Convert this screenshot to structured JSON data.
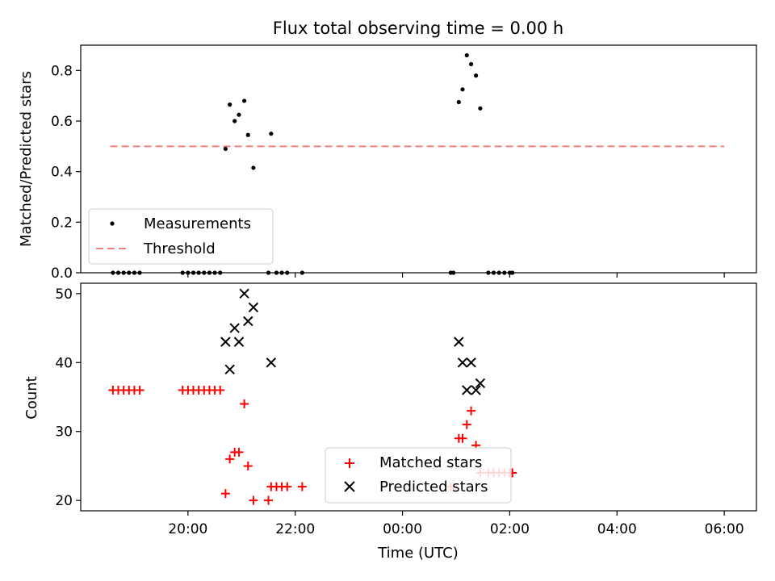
{
  "title": "Flux total observing time = 0.00 h",
  "chart_data": [
    {
      "type": "scatter",
      "panel": "top",
      "ylabel": "Matched/Predicted stars",
      "ylim": [
        0,
        0.9
      ],
      "yticks": [
        "0.0",
        "0.2",
        "0.4",
        "0.6",
        "0.8"
      ],
      "xlim_hours": [
        18.0,
        30.6
      ],
      "threshold": 0.5,
      "threshold_color": "#f08080",
      "series": [
        {
          "name": "Measurements",
          "marker": "dot",
          "color": "#000000",
          "points": [
            [
              18.6,
              0.0
            ],
            [
              18.7,
              0.0
            ],
            [
              18.8,
              0.0
            ],
            [
              18.9,
              0.0
            ],
            [
              19.0,
              0.0
            ],
            [
              19.1,
              0.0
            ],
            [
              19.9,
              0.0
            ],
            [
              20.0,
              0.0
            ],
            [
              20.1,
              0.0
            ],
            [
              20.2,
              0.0
            ],
            [
              20.3,
              0.0
            ],
            [
              20.4,
              0.0
            ],
            [
              20.5,
              0.0
            ],
            [
              20.6,
              0.0
            ],
            [
              20.7,
              0.49
            ],
            [
              20.78,
              0.665
            ],
            [
              20.87,
              0.6
            ],
            [
              20.95,
              0.625
            ],
            [
              21.05,
              0.68
            ],
            [
              21.12,
              0.545
            ],
            [
              21.22,
              0.415
            ],
            [
              21.55,
              0.55
            ],
            [
              21.5,
              0.0
            ],
            [
              21.65,
              0.0
            ],
            [
              21.75,
              0.0
            ],
            [
              21.85,
              0.0
            ],
            [
              22.13,
              0.0
            ],
            [
              24.9,
              0.0
            ],
            [
              24.95,
              0.0
            ],
            [
              25.05,
              0.675
            ],
            [
              25.12,
              0.725
            ],
            [
              25.2,
              0.86
            ],
            [
              25.28,
              0.825
            ],
            [
              25.37,
              0.78
            ],
            [
              25.45,
              0.65
            ],
            [
              25.6,
              0.0
            ],
            [
              25.7,
              0.0
            ],
            [
              25.8,
              0.0
            ],
            [
              25.9,
              0.0
            ],
            [
              26.0,
              0.0
            ],
            [
              26.05,
              0.0
            ]
          ]
        }
      ],
      "legend": {
        "placement": "lower-left",
        "entries": [
          "Measurements",
          "Threshold"
        ]
      }
    },
    {
      "type": "scatter",
      "panel": "bottom",
      "ylabel": "Count",
      "xlabel": "Time (UTC)",
      "ylim": [
        18.5,
        51.5
      ],
      "yticks": [
        "20",
        "30",
        "40",
        "50"
      ],
      "xlim_hours": [
        18.0,
        30.6
      ],
      "xticks": [
        {
          "hour": 20,
          "label": "20:00"
        },
        {
          "hour": 22,
          "label": "22:00"
        },
        {
          "hour": 24,
          "label": "00:00"
        },
        {
          "hour": 26,
          "label": "02:00"
        },
        {
          "hour": 28,
          "label": "04:00"
        },
        {
          "hour": 30,
          "label": "06:00"
        }
      ],
      "series": [
        {
          "name": "Matched stars",
          "marker": "plus",
          "color": "#ff0000",
          "points": [
            [
              18.6,
              36
            ],
            [
              18.7,
              36
            ],
            [
              18.8,
              36
            ],
            [
              18.9,
              36
            ],
            [
              19.0,
              36
            ],
            [
              19.1,
              36
            ],
            [
              19.9,
              36
            ],
            [
              20.0,
              36
            ],
            [
              20.1,
              36
            ],
            [
              20.2,
              36
            ],
            [
              20.3,
              36
            ],
            [
              20.4,
              36
            ],
            [
              20.5,
              36
            ],
            [
              20.6,
              36
            ],
            [
              20.7,
              21
            ],
            [
              20.78,
              26
            ],
            [
              20.87,
              27
            ],
            [
              20.95,
              27
            ],
            [
              21.05,
              34
            ],
            [
              21.12,
              25
            ],
            [
              21.22,
              20
            ],
            [
              21.5,
              20
            ],
            [
              21.55,
              22
            ],
            [
              21.65,
              22
            ],
            [
              21.75,
              22
            ],
            [
              21.85,
              22
            ],
            [
              22.13,
              22
            ],
            [
              24.9,
              22
            ],
            [
              24.95,
              22
            ],
            [
              25.05,
              29
            ],
            [
              25.12,
              29
            ],
            [
              25.2,
              31
            ],
            [
              25.28,
              33
            ],
            [
              25.37,
              28
            ],
            [
              25.45,
              24
            ],
            [
              25.6,
              24
            ],
            [
              25.7,
              24
            ],
            [
              25.8,
              24
            ],
            [
              25.9,
              24
            ],
            [
              26.0,
              24
            ],
            [
              26.05,
              24
            ]
          ]
        },
        {
          "name": "Predicted stars",
          "marker": "x",
          "color": "#000000",
          "points": [
            [
              20.7,
              43
            ],
            [
              20.78,
              39
            ],
            [
              20.87,
              45
            ],
            [
              20.95,
              43
            ],
            [
              21.05,
              50
            ],
            [
              21.12,
              46
            ],
            [
              21.22,
              48
            ],
            [
              21.55,
              40
            ],
            [
              25.05,
              43
            ],
            [
              25.12,
              40
            ],
            [
              25.2,
              36
            ],
            [
              25.28,
              40
            ],
            [
              25.37,
              36
            ],
            [
              25.45,
              37
            ]
          ]
        }
      ],
      "legend": {
        "placement": "lower-center",
        "entries": [
          "Matched stars",
          "Predicted stars"
        ]
      }
    }
  ]
}
